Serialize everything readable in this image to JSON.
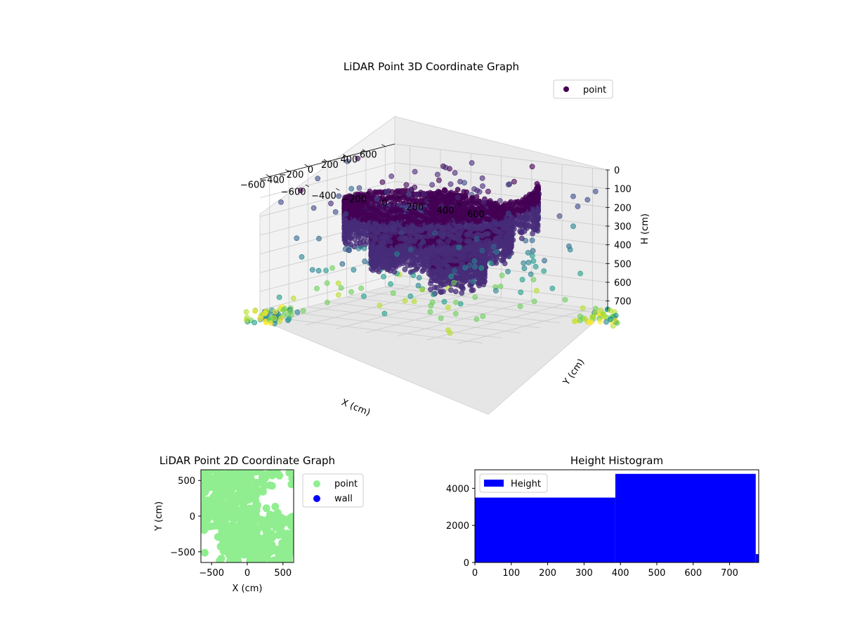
{
  "chart_data": [
    {
      "type": "scatter",
      "title": "LiDAR Point 3D Coordinate Graph",
      "xlabel": "X (cm)",
      "ylabel": "Y (cm)",
      "zlabel": "H (cm)",
      "xlim": [
        -700,
        700
      ],
      "ylim": [
        -700,
        700
      ],
      "zlim": [
        0,
        750
      ],
      "z_inverted": true,
      "xticks": [
        -600,
        -400,
        -200,
        0,
        200,
        400,
        600
      ],
      "yticks": [
        -600,
        -400,
        -200,
        0,
        200,
        400,
        600
      ],
      "zticks": [
        0,
        100,
        200,
        300,
        400,
        500,
        600,
        700
      ],
      "grid": true,
      "legend": {
        "entries": [
          "point"
        ],
        "placement": "upper right"
      },
      "colormap": "viridis",
      "series": [
        {
          "name": "point",
          "marker": "circle",
          "color": "#440154",
          "alpha": 0.6,
          "spiral": {
            "inner_radius": 200,
            "outer_radius": 580,
            "turns": 2.3,
            "h_range": [
              0,
              700
            ]
          }
        }
      ]
    },
    {
      "type": "scatter",
      "title": "LiDAR Point 2D Coordinate Graph",
      "xlabel": "X (cm)",
      "ylabel": "Y (cm)",
      "xlim": [
        -650,
        650
      ],
      "ylim": [
        -650,
        650
      ],
      "xticks": [
        -500,
        0,
        500
      ],
      "yticks": [
        -500,
        0,
        500
      ],
      "grid": false,
      "legend": {
        "entries": [
          "point",
          "wall"
        ],
        "placement": "outside right"
      },
      "series": [
        {
          "name": "point",
          "color": "#90ee90",
          "coverage": "dense over most of the area"
        },
        {
          "name": "wall",
          "color": "#0000ff",
          "values": []
        }
      ]
    },
    {
      "type": "bar",
      "title": "Height Histogram",
      "xlabel": "",
      "ylabel": "",
      "xlim": [
        0,
        780
      ],
      "ylim": [
        0,
        5000
      ],
      "xticks": [
        0,
        100,
        200,
        300,
        400,
        500,
        600,
        700
      ],
      "yticks": [
        0,
        2000,
        4000
      ],
      "grid": false,
      "legend": {
        "entries": [
          "Height"
        ],
        "placement": "upper left"
      },
      "color": "#0000ff",
      "bins": [
        {
          "start": 0,
          "end": 386,
          "value": 3500
        },
        {
          "start": 386,
          "end": 772,
          "value": 4780
        },
        {
          "start": 772,
          "end": 780,
          "value": 450
        }
      ]
    }
  ]
}
